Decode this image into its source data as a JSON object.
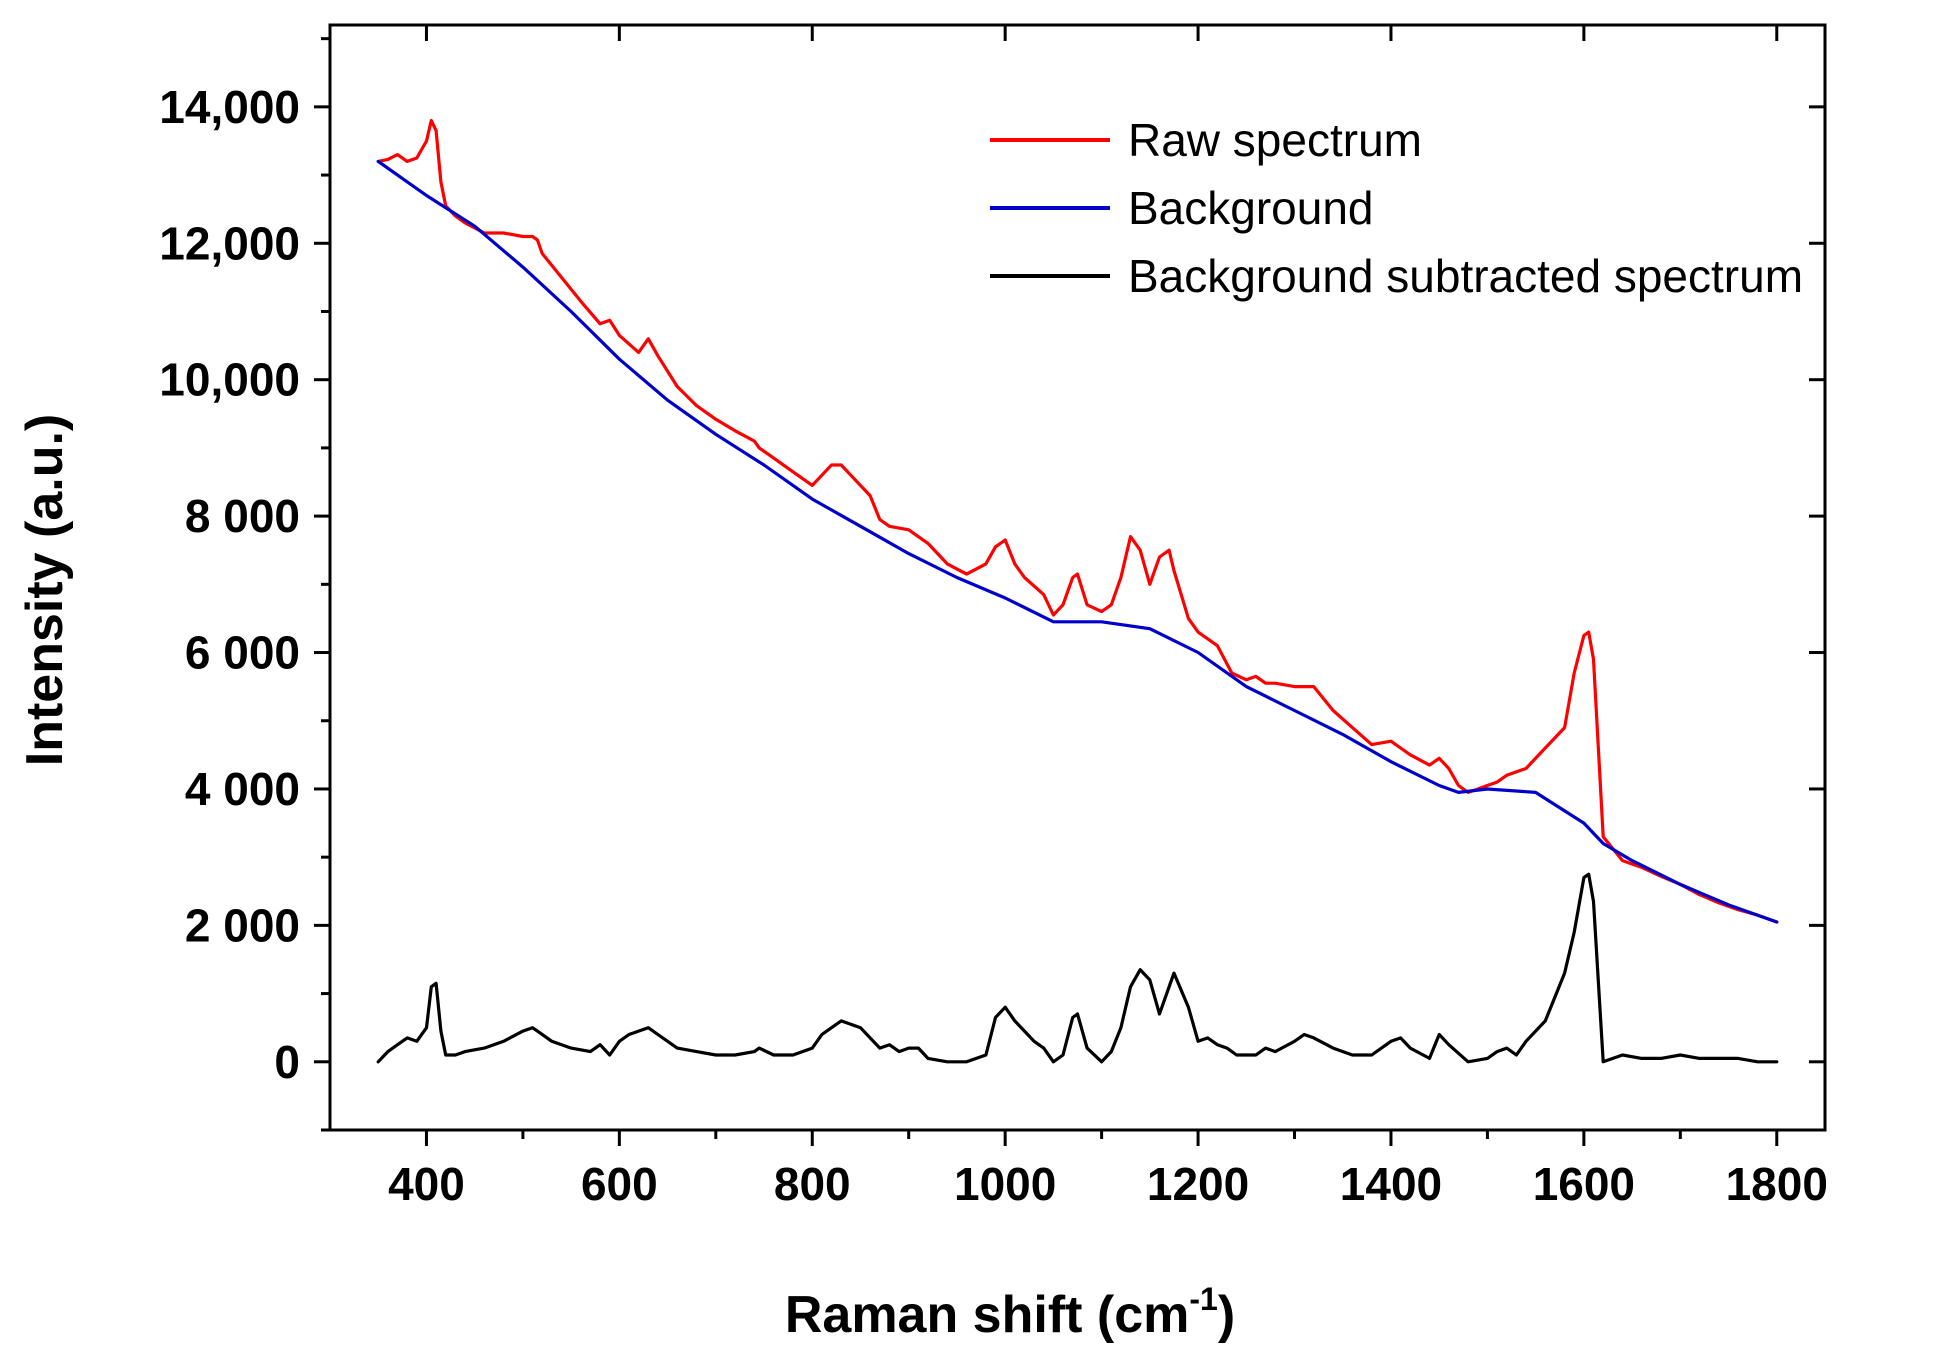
{
  "chart_data": {
    "type": "line",
    "title": "",
    "xlabel": "Raman shift (cm",
    "xlabel_sup": "-1",
    "xlabel_end": ")",
    "ylabel": "Intensity (a.u.)",
    "xlim": [
      300,
      1850
    ],
    "ylim": [
      -1000,
      15200
    ],
    "xticks": [
      400,
      600,
      800,
      1000,
      1200,
      1400,
      1600,
      1800
    ],
    "xtick_labels": [
      "400",
      "600",
      "800",
      "1000",
      "1200",
      "1400",
      "1600",
      "1800"
    ],
    "yticks": [
      0,
      2000,
      4000,
      6000,
      8000,
      10000,
      12000,
      14000
    ],
    "ytick_labels": [
      "0",
      "2 000",
      "4 000",
      "6 000",
      "8 000",
      "10,000",
      "12,000",
      "14,000"
    ],
    "legend_position": "top-right",
    "grid": false,
    "series": [
      {
        "name": "Raw spectrum",
        "color": "#ff0000",
        "x": [
          350,
          360,
          370,
          380,
          390,
          400,
          405,
          410,
          415,
          420,
          430,
          440,
          460,
          480,
          500,
          510,
          515,
          520,
          540,
          560,
          580,
          590,
          600,
          620,
          630,
          640,
          660,
          680,
          700,
          720,
          740,
          745,
          760,
          780,
          800,
          810,
          820,
          830,
          840,
          860,
          870,
          880,
          900,
          920,
          940,
          960,
          980,
          990,
          1000,
          1010,
          1020,
          1040,
          1050,
          1060,
          1070,
          1075,
          1085,
          1100,
          1110,
          1120,
          1130,
          1140,
          1150,
          1160,
          1170,
          1175,
          1190,
          1200,
          1220,
          1235,
          1250,
          1260,
          1270,
          1280,
          1300,
          1320,
          1340,
          1360,
          1380,
          1400,
          1410,
          1420,
          1440,
          1450,
          1460,
          1470,
          1480,
          1490,
          1500,
          1510,
          1520,
          1540,
          1560,
          1580,
          1590,
          1600,
          1605,
          1610,
          1620,
          1640,
          1660,
          1680,
          1700,
          1720,
          1740,
          1760,
          1780,
          1800
        ],
        "y": [
          13200,
          13230,
          13300,
          13200,
          13250,
          13500,
          13800,
          13650,
          12900,
          12550,
          12400,
          12300,
          12150,
          12150,
          12100,
          12100,
          12050,
          11850,
          11500,
          11150,
          10820,
          10870,
          10650,
          10400,
          10600,
          10350,
          9900,
          9620,
          9420,
          9250,
          9100,
          9000,
          8850,
          8650,
          8450,
          8600,
          8750,
          8750,
          8600,
          8300,
          7950,
          7850,
          7800,
          7600,
          7300,
          7150,
          7300,
          7550,
          7650,
          7300,
          7100,
          6850,
          6550,
          6700,
          7100,
          7150,
          6700,
          6600,
          6700,
          7100,
          7700,
          7500,
          7000,
          7400,
          7500,
          7200,
          6500,
          6300,
          6100,
          5700,
          5600,
          5650,
          5550,
          5550,
          5500,
          5500,
          5150,
          4900,
          4650,
          4700,
          4600,
          4500,
          4350,
          4450,
          4300,
          4050,
          3950,
          4000,
          4050,
          4100,
          4200,
          4300,
          4600,
          4900,
          5700,
          6250,
          6300,
          5900,
          3300,
          2950,
          2850,
          2720,
          2600,
          2450,
          2330,
          2230,
          2150,
          2050
        ]
      },
      {
        "name": "Background",
        "color": "#0000cc",
        "x": [
          350,
          400,
          450,
          500,
          550,
          600,
          650,
          700,
          750,
          800,
          850,
          900,
          950,
          1000,
          1050,
          1100,
          1150,
          1200,
          1250,
          1300,
          1350,
          1400,
          1450,
          1470,
          1500,
          1550,
          1600,
          1620,
          1650,
          1700,
          1750,
          1800
        ],
        "y": [
          13200,
          12700,
          12250,
          11650,
          11000,
          10300,
          9700,
          9200,
          8750,
          8250,
          7850,
          7450,
          7100,
          6800,
          6450,
          6450,
          6350,
          6000,
          5500,
          5150,
          4800,
          4400,
          4050,
          3950,
          4000,
          3950,
          3500,
          3200,
          2950,
          2600,
          2300,
          2050
        ]
      },
      {
        "name": "Background subtracted spectrum",
        "color": "#000000",
        "x": [
          350,
          360,
          370,
          380,
          390,
          400,
          405,
          410,
          415,
          420,
          430,
          440,
          460,
          480,
          500,
          510,
          515,
          530,
          550,
          570,
          580,
          590,
          600,
          610,
          620,
          630,
          640,
          660,
          680,
          700,
          720,
          740,
          745,
          760,
          780,
          800,
          810,
          820,
          830,
          840,
          850,
          870,
          880,
          890,
          900,
          910,
          920,
          940,
          960,
          980,
          990,
          1000,
          1010,
          1020,
          1030,
          1040,
          1050,
          1060,
          1070,
          1075,
          1085,
          1100,
          1110,
          1120,
          1130,
          1140,
          1150,
          1160,
          1170,
          1175,
          1190,
          1200,
          1210,
          1220,
          1230,
          1240,
          1260,
          1270,
          1280,
          1300,
          1310,
          1320,
          1340,
          1360,
          1380,
          1400,
          1410,
          1420,
          1440,
          1450,
          1460,
          1480,
          1500,
          1510,
          1520,
          1530,
          1540,
          1560,
          1580,
          1590,
          1600,
          1605,
          1610,
          1620,
          1640,
          1660,
          1680,
          1700,
          1720,
          1740,
          1760,
          1780,
          1800
        ],
        "y": [
          0,
          150,
          250,
          350,
          300,
          500,
          1100,
          1150,
          450,
          100,
          100,
          150,
          200,
          300,
          450,
          500,
          450,
          300,
          200,
          150,
          250,
          100,
          300,
          400,
          450,
          500,
          400,
          200,
          150,
          100,
          100,
          150,
          200,
          100,
          100,
          200,
          400,
          500,
          600,
          550,
          500,
          200,
          250,
          150,
          200,
          200,
          50,
          0,
          0,
          100,
          650,
          800,
          600,
          450,
          300,
          200,
          0,
          100,
          650,
          700,
          200,
          0,
          150,
          500,
          1100,
          1350,
          1200,
          700,
          1100,
          1300,
          800,
          300,
          350,
          250,
          200,
          100,
          100,
          200,
          150,
          300,
          400,
          350,
          200,
          100,
          100,
          300,
          350,
          200,
          50,
          400,
          250,
          0,
          50,
          150,
          200,
          100,
          300,
          600,
          1300,
          1900,
          2700,
          2750,
          2350,
          0,
          100,
          50,
          50,
          100,
          50,
          50,
          50,
          0,
          0
        ]
      }
    ]
  }
}
